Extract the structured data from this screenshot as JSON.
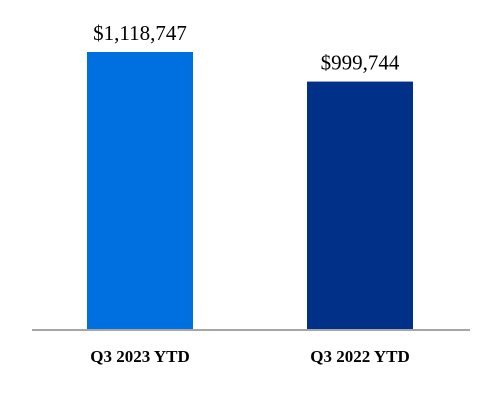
{
  "chart_data": {
    "type": "bar",
    "categories": [
      "Q3 2023 YTD",
      "Q3 2022 YTD"
    ],
    "values": [
      1118747,
      999744
    ],
    "value_labels": [
      "$1,118,747",
      "$999,744"
    ],
    "colors": [
      "#0070E0",
      "#003087"
    ],
    "axis_color": "#A6A6A6",
    "ylim": [
      0,
      1118747
    ],
    "grid": false,
    "title": "",
    "xlabel": "",
    "ylabel": ""
  }
}
